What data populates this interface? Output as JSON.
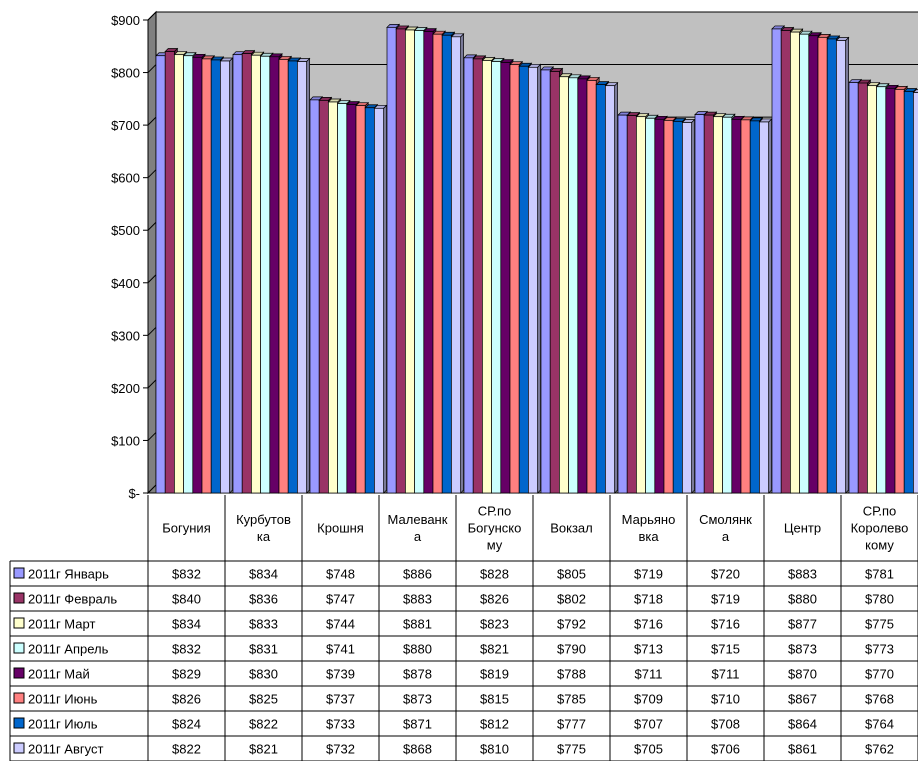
{
  "chart_data": {
    "type": "bar",
    "categories": [
      [
        "Богуния"
      ],
      [
        "Курбутов",
        "ка"
      ],
      [
        "Крошня"
      ],
      [
        "Малеванк",
        "а"
      ],
      [
        "СР.по",
        "Богунско",
        "му"
      ],
      [
        "Вокзал"
      ],
      [
        "Марьяно",
        "вка"
      ],
      [
        "Смолянк",
        "а"
      ],
      [
        "Центр"
      ],
      [
        "СР.по",
        "Королево",
        "кому"
      ]
    ],
    "y_ticks": [
      "$-",
      "$100",
      "$200",
      "$300",
      "$400",
      "$500",
      "$600",
      "$700",
      "$800",
      "$900"
    ],
    "ylim": [
      0,
      900
    ],
    "grid": true,
    "legend": "data-table",
    "series": [
      {
        "name": "2011г Январь",
        "color": "#9999ff",
        "values": [
          832,
          834,
          748,
          886,
          828,
          805,
          719,
          720,
          883,
          781
        ],
        "labels": [
          "$832",
          "$834",
          "$748",
          "$886",
          "$828",
          "$805",
          "$719",
          "$720",
          "$883",
          "$781"
        ]
      },
      {
        "name": "2011г Февраль",
        "color": "#993366",
        "values": [
          840,
          836,
          747,
          883,
          826,
          802,
          718,
          719,
          880,
          780
        ],
        "labels": [
          "$840",
          "$836",
          "$747",
          "$883",
          "$826",
          "$802",
          "$718",
          "$719",
          "$880",
          "$780"
        ]
      },
      {
        "name": "2011г Март",
        "color": "#ffffcc",
        "values": [
          834,
          833,
          744,
          881,
          823,
          792,
          716,
          716,
          877,
          775
        ],
        "labels": [
          "$834",
          "$833",
          "$744",
          "$881",
          "$823",
          "$792",
          "$716",
          "$716",
          "$877",
          "$775"
        ]
      },
      {
        "name": "2011г Апрель",
        "color": "#ccffff",
        "values": [
          832,
          831,
          741,
          880,
          821,
          790,
          713,
          715,
          873,
          773
        ],
        "labels": [
          "$832",
          "$831",
          "$741",
          "$880",
          "$821",
          "$790",
          "$713",
          "$715",
          "$873",
          "$773"
        ]
      },
      {
        "name": "2011г Май",
        "color": "#660066",
        "values": [
          829,
          830,
          739,
          878,
          819,
          788,
          711,
          711,
          870,
          770
        ],
        "labels": [
          "$829",
          "$830",
          "$739",
          "$878",
          "$819",
          "$788",
          "$711",
          "$711",
          "$870",
          "$770"
        ]
      },
      {
        "name": "2011г Июнь",
        "color": "#ff8080",
        "values": [
          826,
          825,
          737,
          873,
          815,
          785,
          709,
          710,
          867,
          768
        ],
        "labels": [
          "$826",
          "$825",
          "$737",
          "$873",
          "$815",
          "$785",
          "$709",
          "$710",
          "$867",
          "$768"
        ]
      },
      {
        "name": "2011г Июль",
        "color": "#0066cc",
        "values": [
          824,
          822,
          733,
          871,
          812,
          777,
          707,
          708,
          864,
          764
        ],
        "labels": [
          "$824",
          "$822",
          "$733",
          "$871",
          "$812",
          "$777",
          "$707",
          "$708",
          "$864",
          "$764"
        ]
      },
      {
        "name": "2011г Август",
        "color": "#ccccff",
        "values": [
          822,
          821,
          732,
          868,
          810,
          775,
          705,
          706,
          861,
          762
        ],
        "labels": [
          "$822",
          "$821",
          "$732",
          "$868",
          "$810",
          "$775",
          "$705",
          "$706",
          "$861",
          "$762"
        ]
      }
    ],
    "colors": {
      "wall": "#c0c0c0",
      "floor": "#808080",
      "grid": "#000000"
    }
  }
}
